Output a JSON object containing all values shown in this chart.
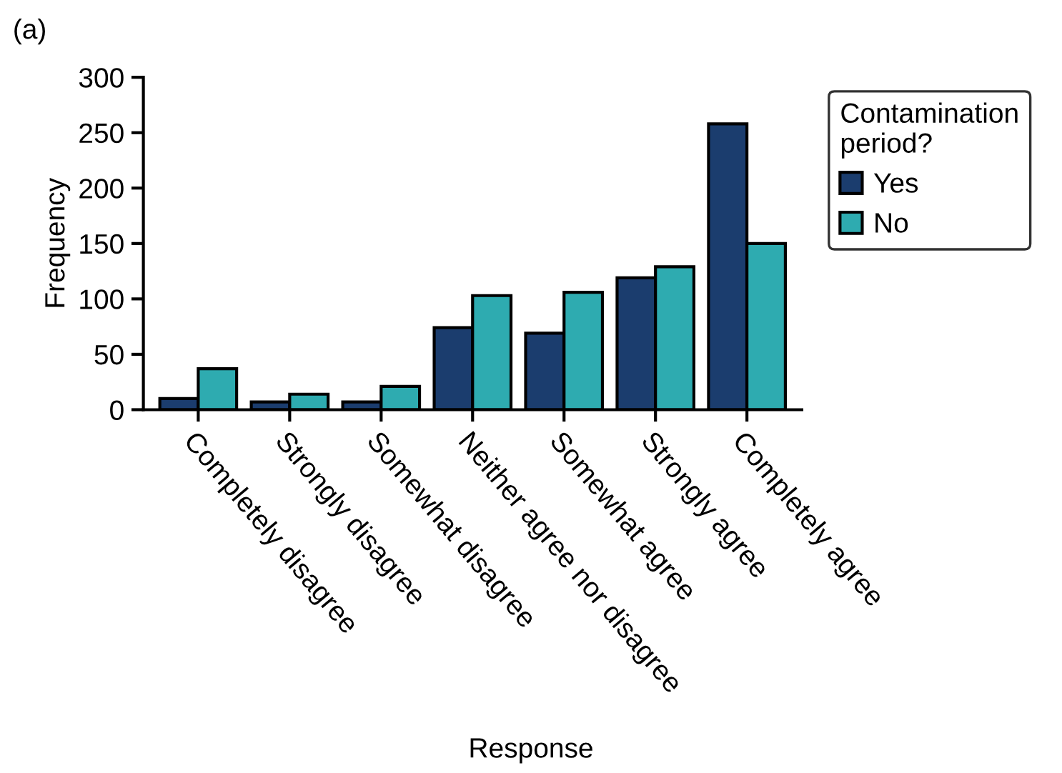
{
  "chart_data": {
    "type": "bar",
    "title": "(a)",
    "xlabel": "Response",
    "ylabel": "Frequency",
    "legend_title": "Contamination\nperiod?",
    "categories": [
      "Completely disagree",
      "Strongly disagree",
      "Somewhat disagree",
      "Neither agree nor disagree",
      "Somewhat agree",
      "Strongly agree",
      "Completely agree"
    ],
    "series": [
      {
        "name": "Yes",
        "color": "#1b3d6e",
        "values": [
          10,
          7,
          7,
          74,
          69,
          119,
          258
        ]
      },
      {
        "name": "No",
        "color": "#2eabb0",
        "values": [
          37,
          14,
          21,
          103,
          106,
          129,
          150
        ]
      }
    ],
    "ylim": [
      0,
      300
    ],
    "yticks": [
      0,
      50,
      100,
      150,
      200,
      250,
      300
    ],
    "grid": false,
    "legend": "right"
  }
}
